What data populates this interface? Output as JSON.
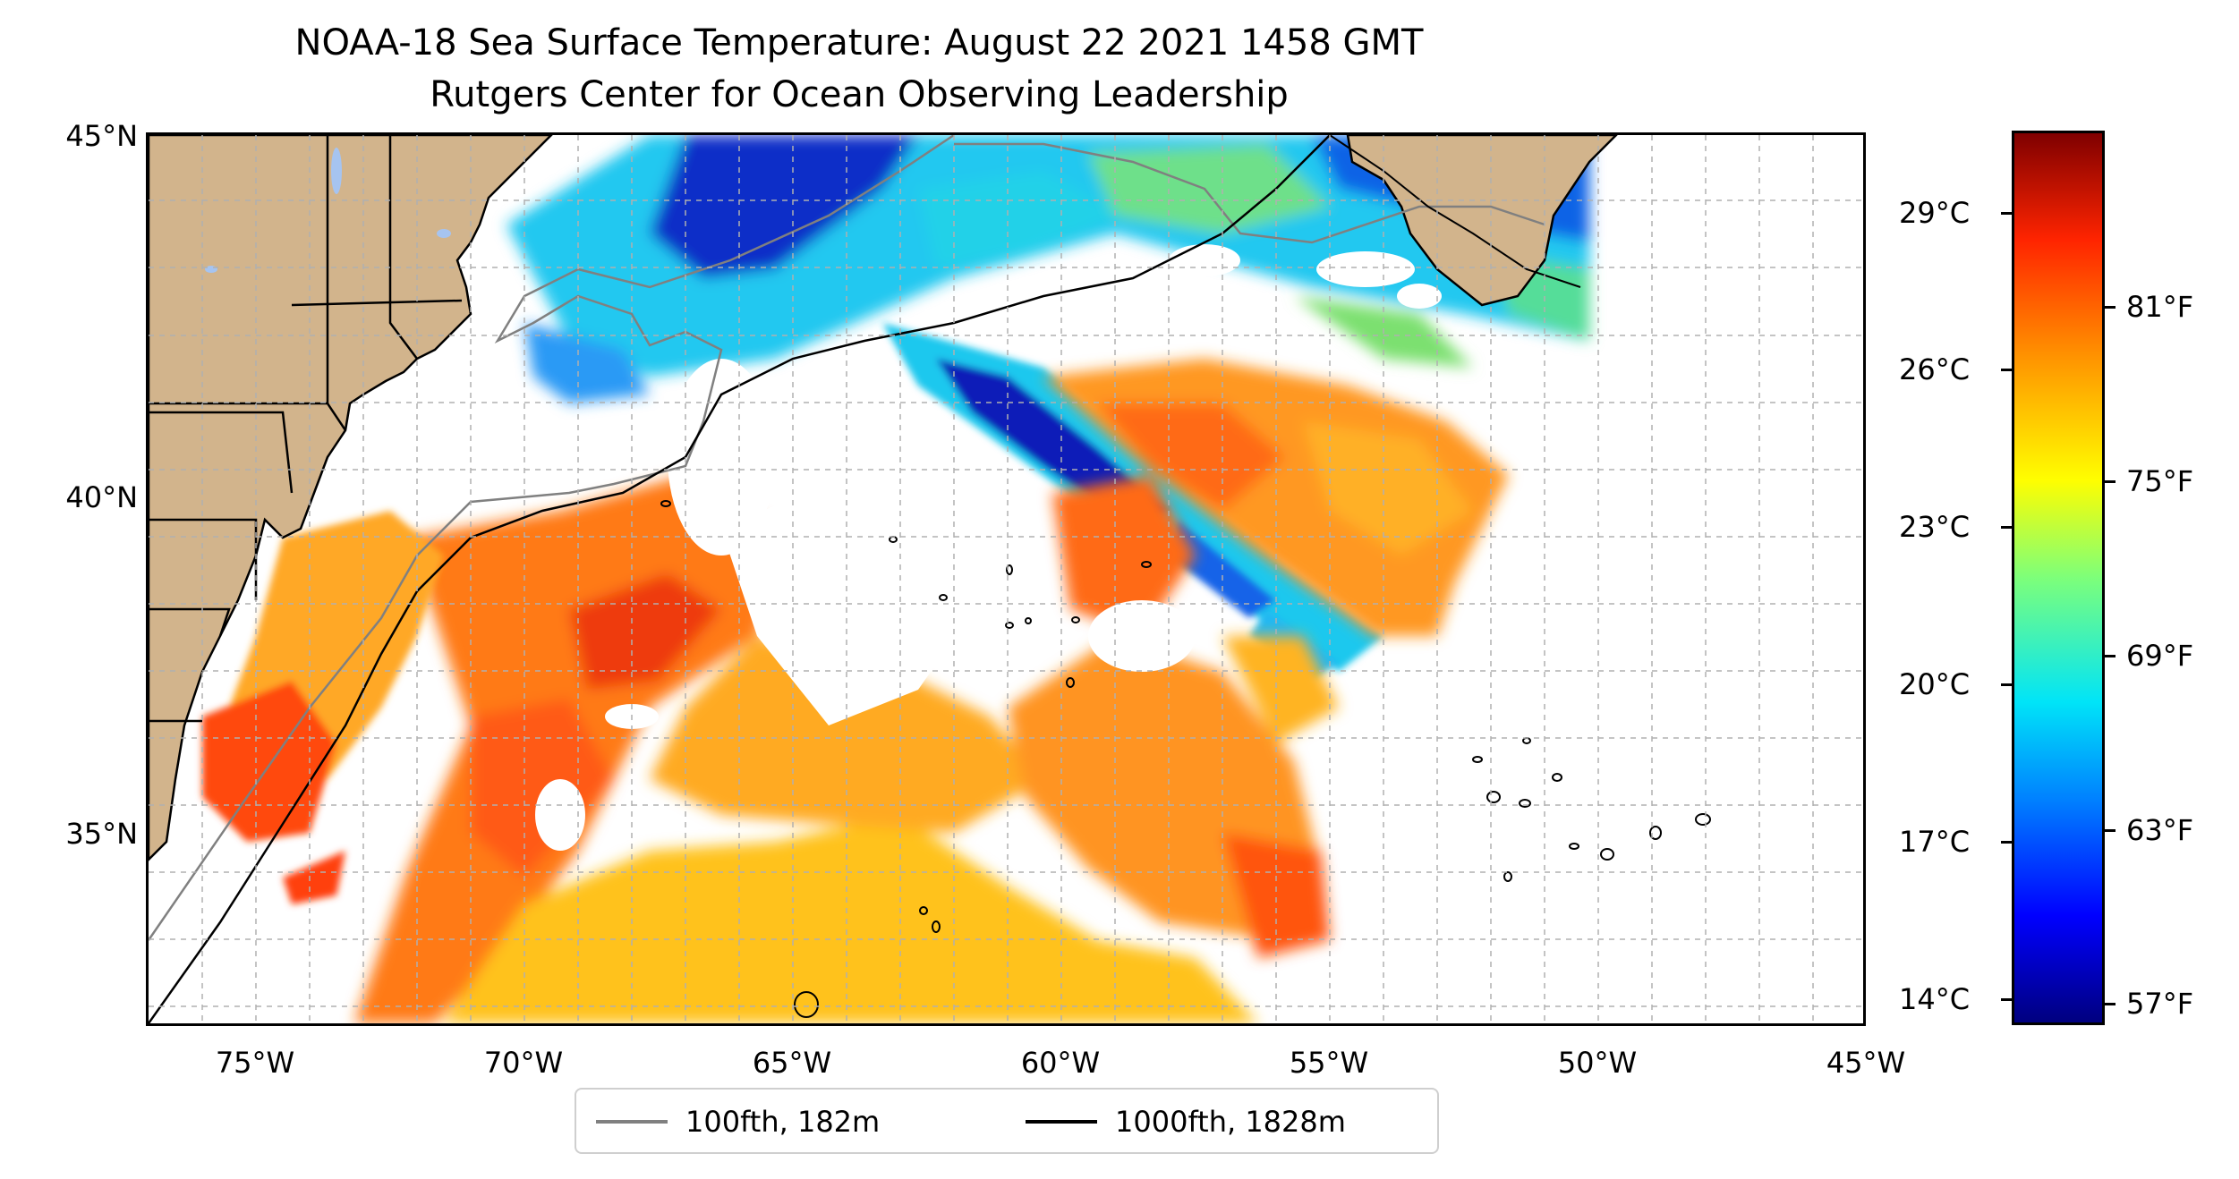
{
  "title": {
    "line1": "NOAA-18 Sea Surface Temperature: August 22 2021 1458 GMT",
    "line2": "Rutgers Center for Ocean Observing Leadership"
  },
  "map": {
    "latitude_labels": [
      "45°N",
      "40°N",
      "35°N"
    ],
    "longitude_labels": [
      "75°W",
      "70°W",
      "65°W",
      "60°W",
      "55°W",
      "50°W",
      "45°W"
    ],
    "land_color": "#d2b48c",
    "lake_color": "#a6c4f0",
    "isobath_100_color": "#808080",
    "isobath_1000_color": "#000000",
    "gridlines": true
  },
  "legend": {
    "items": [
      {
        "label": "100fth, 182m",
        "color": "#808080"
      },
      {
        "label": "1000fth, 1828m",
        "color": "#000000"
      }
    ]
  },
  "colorbar": {
    "colormap": "jet",
    "celsius_labels": [
      "29°C",
      "26°C",
      "23°C",
      "20°C",
      "17°C",
      "14°C"
    ],
    "fahrenheit_labels": [
      "81°F",
      "75°F",
      "69°F",
      "63°F",
      "57°F"
    ]
  }
}
